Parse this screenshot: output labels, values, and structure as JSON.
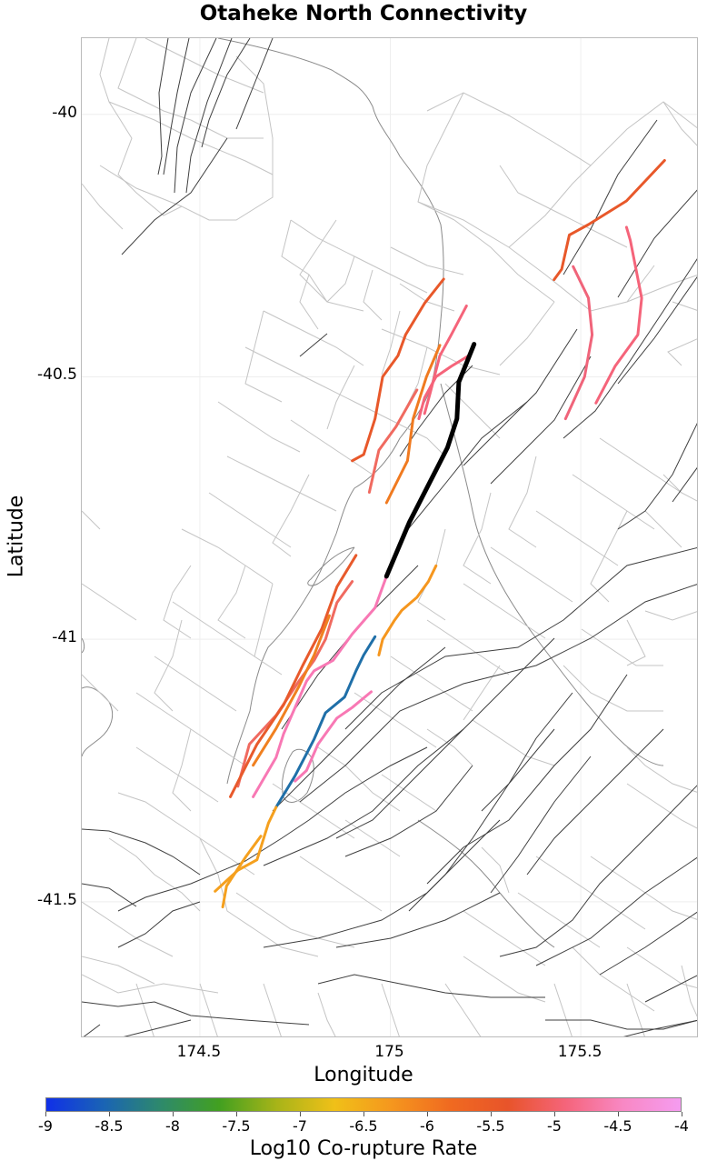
{
  "title": "Otaheke North Connectivity",
  "axes": {
    "xlabel": "Longitude",
    "ylabel": "Latitude",
    "xticks": [
      {
        "label": "174.5",
        "value": 174.5
      },
      {
        "label": "175",
        "value": 175
      },
      {
        "label": "175.5",
        "value": 175.5
      }
    ],
    "yticks": [
      {
        "label": "-40",
        "value": -40
      },
      {
        "label": "-40.5",
        "value": -40.5
      },
      {
        "label": "-41",
        "value": -41
      },
      {
        "label": "-41.5",
        "value": -41.5
      }
    ],
    "xlim": [
      174.19,
      175.81
    ],
    "ylim": [
      -41.76,
      -39.855
    ]
  },
  "colorbar": {
    "label": "Log10 Co-rupture Rate",
    "min": -9,
    "max": -4,
    "ticks": [
      "-9",
      "-8.5",
      "-8",
      "-7.5",
      "-7",
      "-6.5",
      "-6",
      "-5.5",
      "-5",
      "-4.5",
      "-4"
    ],
    "stops": [
      "#1030e8",
      "#1a64b4",
      "#2e8a6a",
      "#42a020",
      "#a8b418",
      "#f0c018",
      "#f5961e",
      "#f06a20",
      "#e8542a",
      "#f5647a",
      "#f888c4",
      "#f59cf0"
    ]
  },
  "chart_data": {
    "type": "map",
    "title": "Otaheke North Connectivity",
    "xlabel": "Longitude",
    "ylabel": "Latitude",
    "target_fault": {
      "name": "Otaheke North",
      "color": "#000000",
      "coords": [
        [
          175.22,
          -40.438
        ],
        [
          175.18,
          -40.51
        ],
        [
          175.175,
          -40.58
        ],
        [
          175.15,
          -40.635
        ],
        [
          175.05,
          -40.777
        ],
        [
          174.99,
          -40.88
        ]
      ]
    },
    "connected_faults": [
      {
        "log10_rate": -4.7,
        "color": "#f06a60",
        "coords": [
          [
            175.07,
            -40.525
          ],
          [
            175.015,
            -40.595
          ],
          [
            174.97,
            -40.64
          ],
          [
            174.945,
            -40.72
          ]
        ]
      },
      {
        "log10_rate": -4.5,
        "color": "#f5647a",
        "coords": [
          [
            175.21,
            -40.458
          ],
          [
            175.16,
            -40.48
          ],
          [
            175.12,
            -40.5
          ],
          [
            175.09,
            -40.54
          ],
          [
            175.075,
            -40.58
          ]
        ]
      },
      {
        "log10_rate": -4.5,
        "color": "#f5647a",
        "coords": [
          [
            175.2,
            -40.365
          ],
          [
            175.16,
            -40.42
          ],
          [
            175.13,
            -40.46
          ],
          [
            175.105,
            -40.53
          ],
          [
            175.09,
            -40.57
          ]
        ]
      },
      {
        "log10_rate": -5.3,
        "color": "#f07a20",
        "coords": [
          [
            175.13,
            -40.44
          ],
          [
            175.095,
            -40.5
          ],
          [
            175.06,
            -40.58
          ],
          [
            175.045,
            -40.66
          ],
          [
            174.99,
            -40.74
          ]
        ]
      },
      {
        "log10_rate": -5.0,
        "color": "#e8582a",
        "coords": [
          [
            175.14,
            -40.314
          ],
          [
            175.09,
            -40.36
          ],
          [
            175.04,
            -40.42
          ],
          [
            175.02,
            -40.46
          ],
          [
            174.98,
            -40.5
          ],
          [
            174.96,
            -40.58
          ],
          [
            174.93,
            -40.648
          ],
          [
            174.9,
            -40.66
          ]
        ]
      },
      {
        "log10_rate": -5.0,
        "color": "#e8582a",
        "coords": [
          [
            175.72,
            -40.088
          ],
          [
            175.62,
            -40.165
          ],
          [
            175.52,
            -40.21
          ],
          [
            175.47,
            -40.23
          ],
          [
            175.45,
            -40.295
          ],
          [
            175.43,
            -40.315
          ]
        ]
      },
      {
        "log10_rate": -4.6,
        "color": "#f0647a",
        "coords": [
          [
            175.48,
            -40.29
          ],
          [
            175.52,
            -40.35
          ],
          [
            175.53,
            -40.42
          ],
          [
            175.51,
            -40.5
          ],
          [
            175.46,
            -40.58
          ]
        ]
      },
      {
        "log10_rate": -4.5,
        "color": "#f5647a",
        "coords": [
          [
            175.62,
            -40.215
          ],
          [
            175.63,
            -40.24
          ],
          [
            175.66,
            -40.35
          ],
          [
            175.65,
            -40.42
          ],
          [
            175.59,
            -40.48
          ],
          [
            175.54,
            -40.55
          ]
        ]
      },
      {
        "log10_rate": -4.3,
        "color": "#f878b4",
        "coords": [
          [
            174.99,
            -40.88
          ],
          [
            174.96,
            -40.94
          ],
          [
            174.9,
            -40.99
          ],
          [
            174.85,
            -41.04
          ],
          [
            174.8,
            -41.06
          ],
          [
            174.78,
            -41.08
          ],
          [
            174.72,
            -41.18
          ],
          [
            174.7,
            -41.225
          ],
          [
            174.64,
            -41.3
          ]
        ]
      },
      {
        "log10_rate": -4.7,
        "color": "#f06a60",
        "coords": [
          [
            174.9,
            -40.89
          ],
          [
            174.86,
            -40.93
          ],
          [
            174.83,
            -41.0
          ],
          [
            174.8,
            -41.04
          ],
          [
            174.76,
            -41.08
          ],
          [
            174.7,
            -41.145
          ],
          [
            174.63,
            -41.2
          ],
          [
            174.6,
            -41.28
          ]
        ]
      },
      {
        "log10_rate": -5.1,
        "color": "#e85a2c",
        "coords": [
          [
            174.91,
            -40.84
          ],
          [
            174.86,
            -40.9
          ],
          [
            174.82,
            -40.98
          ],
          [
            174.77,
            -41.05
          ],
          [
            174.72,
            -41.125
          ],
          [
            174.65,
            -41.2
          ],
          [
            174.58,
            -41.3
          ]
        ]
      },
      {
        "log10_rate": -5.6,
        "color": "#f08020",
        "coords": [
          [
            174.84,
            -40.955
          ],
          [
            174.8,
            -41.03
          ],
          [
            174.76,
            -41.09
          ],
          [
            174.7,
            -41.17
          ],
          [
            174.64,
            -41.24
          ]
        ]
      },
      {
        "log10_rate": -4.3,
        "color": "#f878b4",
        "coords": [
          [
            174.95,
            -41.1
          ],
          [
            174.9,
            -41.13
          ],
          [
            174.86,
            -41.15
          ],
          [
            174.81,
            -41.2
          ],
          [
            174.78,
            -41.25
          ],
          [
            174.75,
            -41.27
          ]
        ]
      },
      {
        "log10_rate": -8.4,
        "color": "#1f6fa8",
        "coords": [
          [
            174.96,
            -40.995
          ],
          [
            174.93,
            -41.03
          ],
          [
            174.91,
            -41.06
          ],
          [
            174.88,
            -41.11
          ],
          [
            174.83,
            -41.14
          ],
          [
            174.8,
            -41.19
          ],
          [
            174.75,
            -41.26
          ],
          [
            174.7,
            -41.32
          ]
        ]
      },
      {
        "log10_rate": -5.8,
        "color": "#f5961e",
        "coords": [
          [
            175.12,
            -40.86
          ],
          [
            175.1,
            -40.89
          ],
          [
            175.07,
            -40.92
          ],
          [
            175.03,
            -40.945
          ],
          [
            175.01,
            -40.965
          ],
          [
            174.98,
            -41.0
          ],
          [
            174.97,
            -41.03
          ]
        ]
      },
      {
        "log10_rate": -5.9,
        "color": "#f5a01e",
        "coords": [
          [
            174.7,
            -41.32
          ],
          [
            174.68,
            -41.35
          ],
          [
            174.65,
            -41.42
          ],
          [
            174.6,
            -41.44
          ],
          [
            174.54,
            -41.48
          ]
        ]
      },
      {
        "log10_rate": -5.9,
        "color": "#f5a01e",
        "coords": [
          [
            174.66,
            -41.375
          ],
          [
            174.62,
            -41.415
          ],
          [
            174.57,
            -41.47
          ],
          [
            174.56,
            -41.51
          ]
        ]
      }
    ]
  }
}
